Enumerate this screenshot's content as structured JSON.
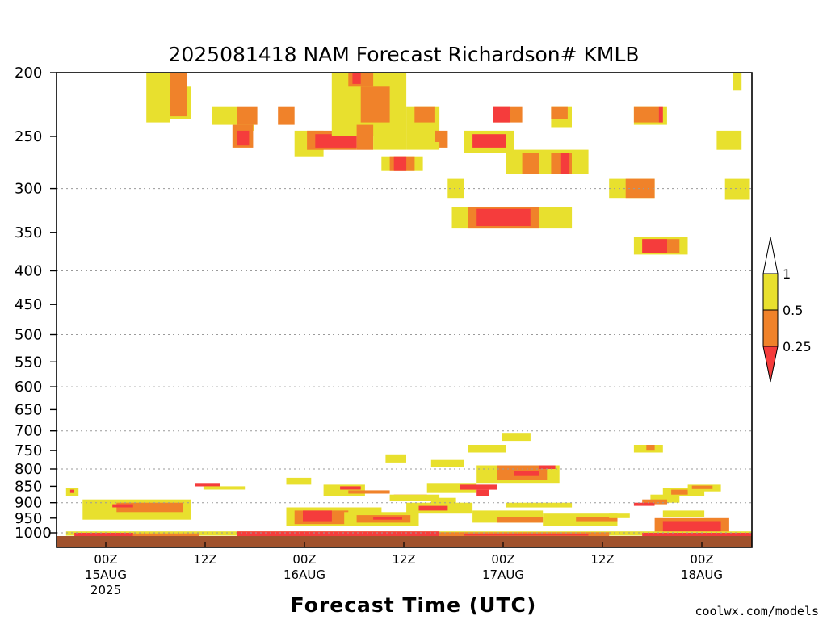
{
  "chart_data": {
    "type": "heatmap",
    "title": "2025081418 NAM Forecast Richardson# KMLB",
    "xlabel": "Forecast Time (UTC)",
    "ylabel": "",
    "credit": "coolwx.com/models",
    "y_scale": "log",
    "ylim": [
      200,
      1030
    ],
    "xlim": [
      -5,
      79
    ],
    "x_units": "hours after 15AUG2025 00Z",
    "y_ticks": [
      200,
      250,
      300,
      350,
      400,
      450,
      500,
      550,
      600,
      650,
      700,
      750,
      800,
      850,
      900,
      950,
      1000
    ],
    "grid_levels": [
      300,
      400,
      500,
      600,
      700,
      800,
      900,
      1000
    ],
    "x_ticks": [
      {
        "hour": 0,
        "lines": [
          "00Z",
          "15AUG",
          "2025"
        ]
      },
      {
        "hour": 12,
        "lines": [
          "12Z"
        ]
      },
      {
        "hour": 24,
        "lines": [
          "00Z",
          "16AUG"
        ]
      },
      {
        "hour": 36,
        "lines": [
          "12Z"
        ]
      },
      {
        "hour": 48,
        "lines": [
          "00Z",
          "17AUG"
        ]
      },
      {
        "hour": 60,
        "lines": [
          "12Z"
        ]
      },
      {
        "hour": 72,
        "lines": [
          "00Z",
          "18AUG"
        ]
      }
    ],
    "legend": {
      "position": "right",
      "labels": [
        "1",
        "0.5",
        "0.25"
      ],
      "colors": {
        "lt_0.25": "#f53c3c",
        "0.25_0.5": "#f0822a",
        "0.5_1": "#e8e02e",
        "above_1": "#ffffff"
      }
    },
    "ground_color": "#a0522d",
    "cells": [
      {
        "x0": 4.9,
        "x1": 7.8,
        "p0": 200,
        "p1": 238,
        "cat": "0.5-1"
      },
      {
        "x0": 7.8,
        "x1": 10.3,
        "p0": 210,
        "p1": 235,
        "cat": "0.5-1"
      },
      {
        "x0": 12.8,
        "x1": 15.8,
        "p0": 225,
        "p1": 240,
        "cat": "0.5-1"
      },
      {
        "x0": 7.8,
        "x1": 9.8,
        "p0": 200,
        "p1": 233,
        "cat": "0.25-0.5"
      },
      {
        "x0": 15.8,
        "x1": 18.3,
        "p0": 225,
        "p1": 240,
        "cat": "0.25-0.5"
      },
      {
        "x0": 15.8,
        "x1": 17.9,
        "p0": 240,
        "p1": 245,
        "cat": "0.5-1"
      },
      {
        "x0": 15.3,
        "x1": 17.8,
        "p0": 240,
        "p1": 260,
        "cat": "0.25-0.5"
      },
      {
        "x0": 15.8,
        "x1": 17.3,
        "p0": 245,
        "p1": 258,
        "cat": "lt0.25"
      },
      {
        "x0": 22.8,
        "x1": 26.3,
        "p0": 245,
        "p1": 268,
        "cat": "0.5-1"
      },
      {
        "x0": 24.3,
        "x1": 30.3,
        "p0": 245,
        "p1": 262,
        "cat": "0.25-0.5"
      },
      {
        "x0": 25.3,
        "x1": 30.3,
        "p0": 248,
        "p1": 260,
        "cat": "lt0.25"
      },
      {
        "x0": 20.8,
        "x1": 22.8,
        "p0": 225,
        "p1": 240,
        "cat": "0.25-0.5"
      },
      {
        "x0": 27.3,
        "x1": 36.3,
        "p0": 200,
        "p1": 250,
        "cat": "0.5-1"
      },
      {
        "x0": 29.3,
        "x1": 32.3,
        "p0": 200,
        "p1": 210,
        "cat": "0.25-0.5"
      },
      {
        "x0": 29.8,
        "x1": 30.8,
        "p0": 200,
        "p1": 208,
        "cat": "lt0.25"
      },
      {
        "x0": 30.8,
        "x1": 34.3,
        "p0": 210,
        "p1": 238,
        "cat": "0.25-0.5"
      },
      {
        "x0": 30.3,
        "x1": 32.3,
        "p0": 240,
        "p1": 262,
        "cat": "0.25-0.5"
      },
      {
        "x0": 36.3,
        "x1": 40.3,
        "p0": 225,
        "p1": 255,
        "cat": "0.5-1"
      },
      {
        "x0": 37.3,
        "x1": 39.8,
        "p0": 225,
        "p1": 238,
        "cat": "0.25-0.5"
      },
      {
        "x0": 39.8,
        "x1": 41.3,
        "p0": 245,
        "p1": 260,
        "cat": "0.25-0.5"
      },
      {
        "x0": 32.3,
        "x1": 36.3,
        "p0": 250,
        "p1": 262,
        "cat": "0.5-1"
      },
      {
        "x0": 36.3,
        "x1": 40.3,
        "p0": 255,
        "p1": 262,
        "cat": "0.5-1"
      },
      {
        "x0": 33.3,
        "x1": 38.3,
        "p0": 268,
        "p1": 282,
        "cat": "0.5-1"
      },
      {
        "x0": 34.3,
        "x1": 37.3,
        "p0": 268,
        "p1": 282,
        "cat": "0.25-0.5"
      },
      {
        "x0": 34.8,
        "x1": 36.3,
        "p0": 268,
        "p1": 282,
        "cat": "lt0.25"
      },
      {
        "x0": 46.8,
        "x1": 50.3,
        "p0": 225,
        "p1": 238,
        "cat": "0.25-0.5"
      },
      {
        "x0": 46.8,
        "x1": 48.8,
        "p0": 225,
        "p1": 238,
        "cat": "lt0.25"
      },
      {
        "x0": 43.3,
        "x1": 49.3,
        "p0": 245,
        "p1": 265,
        "cat": "0.5-1"
      },
      {
        "x0": 44.3,
        "x1": 48.3,
        "p0": 248,
        "p1": 260,
        "cat": "lt0.25"
      },
      {
        "x0": 53.8,
        "x1": 56.3,
        "p0": 225,
        "p1": 242,
        "cat": "0.5-1"
      },
      {
        "x0": 53.8,
        "x1": 55.8,
        "p0": 225,
        "p1": 235,
        "cat": "0.25-0.5"
      },
      {
        "x0": 48.3,
        "x1": 58.3,
        "p0": 262,
        "p1": 285,
        "cat": "0.5-1"
      },
      {
        "x0": 50.3,
        "x1": 52.3,
        "p0": 265,
        "p1": 285,
        "cat": "0.25-0.5"
      },
      {
        "x0": 53.8,
        "x1": 56.3,
        "p0": 265,
        "p1": 285,
        "cat": "0.25-0.5"
      },
      {
        "x0": 55.0,
        "x1": 56.0,
        "p0": 265,
        "p1": 285,
        "cat": "lt0.25"
      },
      {
        "x0": 63.8,
        "x1": 67.8,
        "p0": 225,
        "p1": 240,
        "cat": "0.5-1"
      },
      {
        "x0": 63.8,
        "x1": 66.8,
        "p0": 225,
        "p1": 238,
        "cat": "0.25-0.5"
      },
      {
        "x0": 66.8,
        "x1": 67.3,
        "p0": 225,
        "p1": 238,
        "cat": "lt0.25"
      },
      {
        "x0": 73.8,
        "x1": 76.8,
        "p0": 245,
        "p1": 262,
        "cat": "0.5-1"
      },
      {
        "x0": 75.8,
        "x1": 76.8,
        "p0": 200,
        "p1": 213,
        "cat": "0.5-1"
      },
      {
        "x0": 41.3,
        "x1": 43.3,
        "p0": 290,
        "p1": 310,
        "cat": "0.5-1"
      },
      {
        "x0": 41.8,
        "x1": 56.3,
        "p0": 320,
        "p1": 345,
        "cat": "0.5-1"
      },
      {
        "x0": 43.8,
        "x1": 52.3,
        "p0": 320,
        "p1": 345,
        "cat": "0.25-0.5"
      },
      {
        "x0": 44.8,
        "x1": 51.3,
        "p0": 322,
        "p1": 342,
        "cat": "lt0.25"
      },
      {
        "x0": 60.8,
        "x1": 66.3,
        "p0": 290,
        "p1": 310,
        "cat": "0.5-1"
      },
      {
        "x0": 62.8,
        "x1": 66.3,
        "p0": 290,
        "p1": 310,
        "cat": "0.25-0.5"
      },
      {
        "x0": 74.8,
        "x1": 77.8,
        "p0": 290,
        "p1": 312,
        "cat": "0.5-1"
      },
      {
        "x0": 63.8,
        "x1": 70.3,
        "p0": 355,
        "p1": 378,
        "cat": "0.5-1"
      },
      {
        "x0": 64.8,
        "x1": 69.3,
        "p0": 358,
        "p1": 376,
        "cat": "0.25-0.5"
      },
      {
        "x0": 64.8,
        "x1": 67.8,
        "p0": 358,
        "p1": 376,
        "cat": "lt0.25"
      },
      {
        "x0": 43.8,
        "x1": 48.3,
        "p0": 735,
        "p1": 755,
        "cat": "0.5-1"
      },
      {
        "x0": 47.8,
        "x1": 51.3,
        "p0": 705,
        "p1": 725,
        "cat": "0.5-1"
      },
      {
        "x0": 63.8,
        "x1": 67.3,
        "p0": 735,
        "p1": 755,
        "cat": "0.5-1"
      },
      {
        "x0": 65.3,
        "x1": 66.3,
        "p0": 735,
        "p1": 750,
        "cat": "0.25-0.5"
      },
      {
        "x0": 44.8,
        "x1": 54.8,
        "p0": 790,
        "p1": 840,
        "cat": "0.5-1"
      },
      {
        "x0": 47.3,
        "x1": 53.3,
        "p0": 790,
        "p1": 830,
        "cat": "0.25-0.5"
      },
      {
        "x0": 49.3,
        "x1": 52.3,
        "p0": 805,
        "p1": 820,
        "cat": "lt0.25"
      },
      {
        "x0": 52.3,
        "x1": 54.3,
        "p0": 790,
        "p1": 800,
        "cat": "lt0.25"
      },
      {
        "x0": 38.8,
        "x1": 44.8,
        "p0": 840,
        "p1": 870,
        "cat": "0.5-1"
      },
      {
        "x0": 42.8,
        "x1": 47.3,
        "p0": 845,
        "p1": 860,
        "cat": "lt0.25"
      },
      {
        "x0": 44.8,
        "x1": 46.3,
        "p0": 860,
        "p1": 880,
        "cat": "lt0.25"
      },
      {
        "x0": 39.3,
        "x1": 42.3,
        "p0": 885,
        "p1": 905,
        "cat": "0.5-1"
      },
      {
        "x0": 34.8,
        "x1": 38.8,
        "p0": 875,
        "p1": 885,
        "cat": "lt0.25"
      },
      {
        "x0": 26.3,
        "x1": 31.3,
        "p0": 845,
        "p1": 880,
        "cat": "0.5-1"
      },
      {
        "x0": 28.3,
        "x1": 30.8,
        "p0": 850,
        "p1": 860,
        "cat": "lt0.25"
      },
      {
        "x0": 29.3,
        "x1": 34.3,
        "p0": 862,
        "p1": 872,
        "cat": "0.25-0.5"
      },
      {
        "x0": 21.8,
        "x1": 24.8,
        "p0": 825,
        "p1": 845,
        "cat": "0.5-1"
      },
      {
        "x0": 39.3,
        "x1": 43.3,
        "p0": 775,
        "p1": 795,
        "cat": "0.5-1"
      },
      {
        "x0": 33.8,
        "x1": 36.3,
        "p0": 760,
        "p1": 782,
        "cat": "0.5-1"
      },
      {
        "x0": 10.8,
        "x1": 13.8,
        "p0": 840,
        "p1": 850,
        "cat": "lt0.25"
      },
      {
        "x0": 11.8,
        "x1": 16.8,
        "p0": 850,
        "p1": 860,
        "cat": "0.5-1"
      },
      {
        "x0": -4.8,
        "x1": -3.3,
        "p0": 855,
        "p1": 880,
        "cat": "0.5-1"
      },
      {
        "x0": -4.3,
        "x1": -3.8,
        "p0": 860,
        "p1": 870,
        "cat": "lt0.25"
      },
      {
        "x0": -2.8,
        "x1": 10.3,
        "p0": 890,
        "p1": 955,
        "cat": "0.5-1"
      },
      {
        "x0": 1.3,
        "x1": 9.3,
        "p0": 900,
        "p1": 930,
        "cat": "0.25-0.5"
      },
      {
        "x0": 0.8,
        "x1": 3.3,
        "p0": 905,
        "p1": 915,
        "cat": "lt0.25"
      },
      {
        "x0": 21.8,
        "x1": 33.3,
        "p0": 915,
        "p1": 975,
        "cat": "0.5-1"
      },
      {
        "x0": 22.8,
        "x1": 29.3,
        "p0": 925,
        "p1": 970,
        "cat": "0.25-0.5"
      },
      {
        "x0": 23.8,
        "x1": 27.3,
        "p0": 925,
        "p1": 960,
        "cat": "lt0.25"
      },
      {
        "x0": 28.8,
        "x1": 37.8,
        "p0": 930,
        "p1": 975,
        "cat": "0.5-1"
      },
      {
        "x0": 30.3,
        "x1": 36.8,
        "p0": 940,
        "p1": 965,
        "cat": "0.25-0.5"
      },
      {
        "x0": 32.3,
        "x1": 35.8,
        "p0": 945,
        "p1": 955,
        "cat": "lt0.25"
      },
      {
        "x0": 36.3,
        "x1": 44.3,
        "p0": 900,
        "p1": 935,
        "cat": "0.5-1"
      },
      {
        "x0": 37.8,
        "x1": 41.3,
        "p0": 910,
        "p1": 925,
        "cat": "lt0.25"
      },
      {
        "x0": 34.3,
        "x1": 40.3,
        "p0": 875,
        "p1": 895,
        "cat": "0.5-1"
      },
      {
        "x0": 44.3,
        "x1": 52.8,
        "p0": 925,
        "p1": 965,
        "cat": "0.5-1"
      },
      {
        "x0": 47.3,
        "x1": 52.8,
        "p0": 945,
        "p1": 965,
        "cat": "0.25-0.5"
      },
      {
        "x0": 52.8,
        "x1": 61.8,
        "p0": 935,
        "p1": 975,
        "cat": "0.5-1"
      },
      {
        "x0": 56.8,
        "x1": 61.8,
        "p0": 945,
        "p1": 960,
        "cat": "0.25-0.5"
      },
      {
        "x0": 48.3,
        "x1": 56.3,
        "p0": 900,
        "p1": 915,
        "cat": "0.5-1"
      },
      {
        "x0": 60.8,
        "x1": 63.3,
        "p0": 935,
        "p1": 950,
        "cat": "0.5-1"
      },
      {
        "x0": 65.8,
        "x1": 69.3,
        "p0": 875,
        "p1": 900,
        "cat": "0.5-1"
      },
      {
        "x0": 67.3,
        "x1": 72.3,
        "p0": 855,
        "p1": 880,
        "cat": "0.5-1"
      },
      {
        "x0": 68.3,
        "x1": 70.3,
        "p0": 860,
        "p1": 875,
        "cat": "0.25-0.5"
      },
      {
        "x0": 70.3,
        "x1": 74.3,
        "p0": 845,
        "p1": 865,
        "cat": "0.5-1"
      },
      {
        "x0": 70.8,
        "x1": 73.3,
        "p0": 848,
        "p1": 858,
        "cat": "0.25-0.5"
      },
      {
        "x0": 64.8,
        "x1": 67.8,
        "p0": 890,
        "p1": 905,
        "cat": "0.25-0.5"
      },
      {
        "x0": 63.8,
        "x1": 66.3,
        "p0": 900,
        "p1": 910,
        "cat": "lt0.25"
      },
      {
        "x0": 67.3,
        "x1": 72.3,
        "p0": 925,
        "p1": 945,
        "cat": "0.5-1"
      },
      {
        "x0": 66.3,
        "x1": 75.3,
        "p0": 950,
        "p1": 1010,
        "cat": "0.25-0.5"
      },
      {
        "x0": 67.3,
        "x1": 74.3,
        "p0": 960,
        "p1": 1005,
        "cat": "lt0.25"
      },
      {
        "x0": -4.8,
        "x1": 79,
        "p0": 995,
        "p1": 1010,
        "cat": "0.5-1"
      },
      {
        "x0": -3.8,
        "x1": 3.3,
        "p0": 1000,
        "p1": 1012,
        "cat": "lt0.25"
      },
      {
        "x0": 3.3,
        "x1": 11.3,
        "p0": 1002,
        "p1": 1012,
        "cat": "0.25-0.5"
      },
      {
        "x0": 15.8,
        "x1": 40.3,
        "p0": 995,
        "p1": 1012,
        "cat": "lt0.25"
      },
      {
        "x0": 40.3,
        "x1": 60.8,
        "p0": 998,
        "p1": 1012,
        "cat": "0.25-0.5"
      },
      {
        "x0": 43.3,
        "x1": 58.3,
        "p0": 1003,
        "p1": 1010,
        "cat": "lt0.25"
      },
      {
        "x0": 64.8,
        "x1": 79,
        "p0": 1000,
        "p1": 1012,
        "cat": "lt0.25"
      }
    ]
  }
}
